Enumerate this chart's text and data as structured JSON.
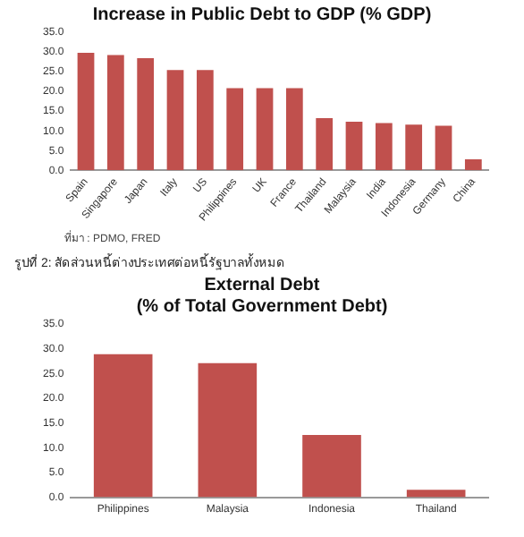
{
  "chart_data": [
    {
      "type": "bar",
      "title": "Increase in Public Debt to GDP (% GDP)",
      "categories": [
        "Spain",
        "Singapore",
        "Japan",
        "Italy",
        "US",
        "Philippines",
        "UK",
        "France",
        "Thailand",
        "Malaysia",
        "India",
        "Indonesia",
        "Germany",
        "China"
      ],
      "series": [
        {
          "color": "#c0504d",
          "values": [
            29.8,
            29.2,
            28.4,
            25.4,
            25.4,
            20.8,
            20.8,
            20.8,
            13.2,
            12.3,
            12.0,
            11.6,
            11.3,
            2.8
          ]
        }
      ],
      "ylim": [
        0,
        35
      ],
      "yticks": [
        {
          "value": 0,
          "label": "0.0"
        },
        {
          "value": 5,
          "label": "5.0"
        },
        {
          "value": 10,
          "label": "10.0"
        },
        {
          "value": 15,
          "label": "15.0"
        },
        {
          "value": 20,
          "label": "20.0"
        },
        {
          "value": 25,
          "label": "25.0"
        },
        {
          "value": 30,
          "label": "30.0"
        },
        {
          "value": 35,
          "label": "35.0"
        }
      ],
      "grid": false,
      "legend": false,
      "annotations": [
        "ที่มา : PDMO, FRED"
      ]
    },
    {
      "type": "bar",
      "subtitle": "รูปที่ 2: สัดส่วนหนี้ต่างประเทศต่อหนี้รัฐบาลทั้งหมด",
      "title": "External Debt\n(% of Total Government Debt)",
      "categories": [
        "Philippines",
        "Malaysia",
        "Indonesia",
        "Thailand"
      ],
      "series": [
        {
          "color": "#c0504d",
          "values": [
            28.9,
            27.1,
            12.6,
            1.5
          ]
        }
      ],
      "ylim": [
        0,
        35
      ],
      "yticks": [
        {
          "value": 0,
          "label": "0.0"
        },
        {
          "value": 5,
          "label": "5.0"
        },
        {
          "value": 10,
          "label": "10.0"
        },
        {
          "value": 15,
          "label": "15.0"
        },
        {
          "value": 20,
          "label": "20.0"
        },
        {
          "value": 25,
          "label": "25.0"
        },
        {
          "value": 30,
          "label": "30.0"
        },
        {
          "value": 35,
          "label": "35.0"
        }
      ],
      "grid": false,
      "legend": false
    }
  ]
}
